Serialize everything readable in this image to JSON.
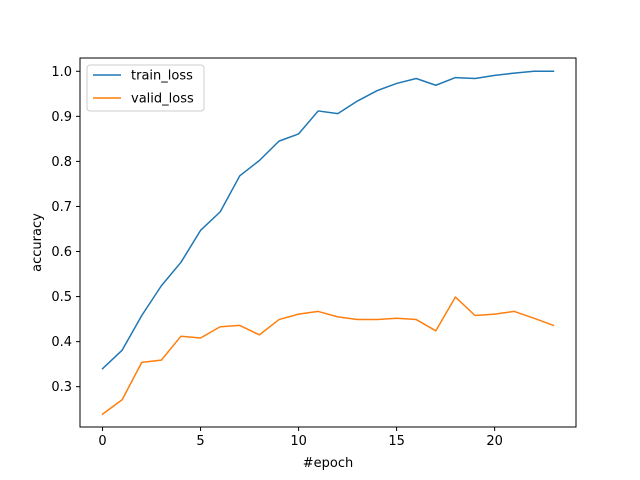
{
  "chart_data": {
    "type": "line",
    "title": "",
    "xlabel": "#epoch",
    "ylabel": "accuracy",
    "xlim": [
      -1.15,
      24.15
    ],
    "ylim": [
      0.2105,
      1.0295
    ],
    "x_ticks": [
      0,
      5,
      10,
      15,
      20
    ],
    "y_ticks": [
      0.3,
      0.4,
      0.5,
      0.6,
      0.7,
      0.8,
      0.9,
      1.0
    ],
    "x_tick_labels": [
      "0",
      "5",
      "10",
      "15",
      "20"
    ],
    "y_tick_labels": [
      "0.3",
      "0.4",
      "0.5",
      "0.6",
      "0.7",
      "0.8",
      "0.9",
      "1.0"
    ],
    "grid": false,
    "legend_position": "top-left",
    "x": [
      0,
      1,
      2,
      3,
      4,
      5,
      6,
      7,
      8,
      9,
      10,
      11,
      12,
      13,
      14,
      15,
      16,
      17,
      18,
      19,
      20,
      21,
      22,
      23
    ],
    "series": [
      {
        "name": "train_loss",
        "color": "#1f77b4",
        "values": [
          0.34,
          0.381,
          0.458,
          0.524,
          0.576,
          0.647,
          0.688,
          0.768,
          0.802,
          0.845,
          0.861,
          0.912,
          0.906,
          0.934,
          0.957,
          0.973,
          0.984,
          0.969,
          0.986,
          0.984,
          0.991,
          0.996,
          1.0,
          1.0
        ]
      },
      {
        "name": "valid_loss",
        "color": "#ff7f0e",
        "values": [
          0.239,
          0.271,
          0.354,
          0.359,
          0.412,
          0.408,
          0.433,
          0.436,
          0.415,
          0.449,
          0.461,
          0.467,
          0.455,
          0.449,
          0.449,
          0.452,
          0.449,
          0.424,
          0.499,
          0.458,
          0.461,
          0.467,
          0.452,
          0.436
        ]
      }
    ]
  }
}
